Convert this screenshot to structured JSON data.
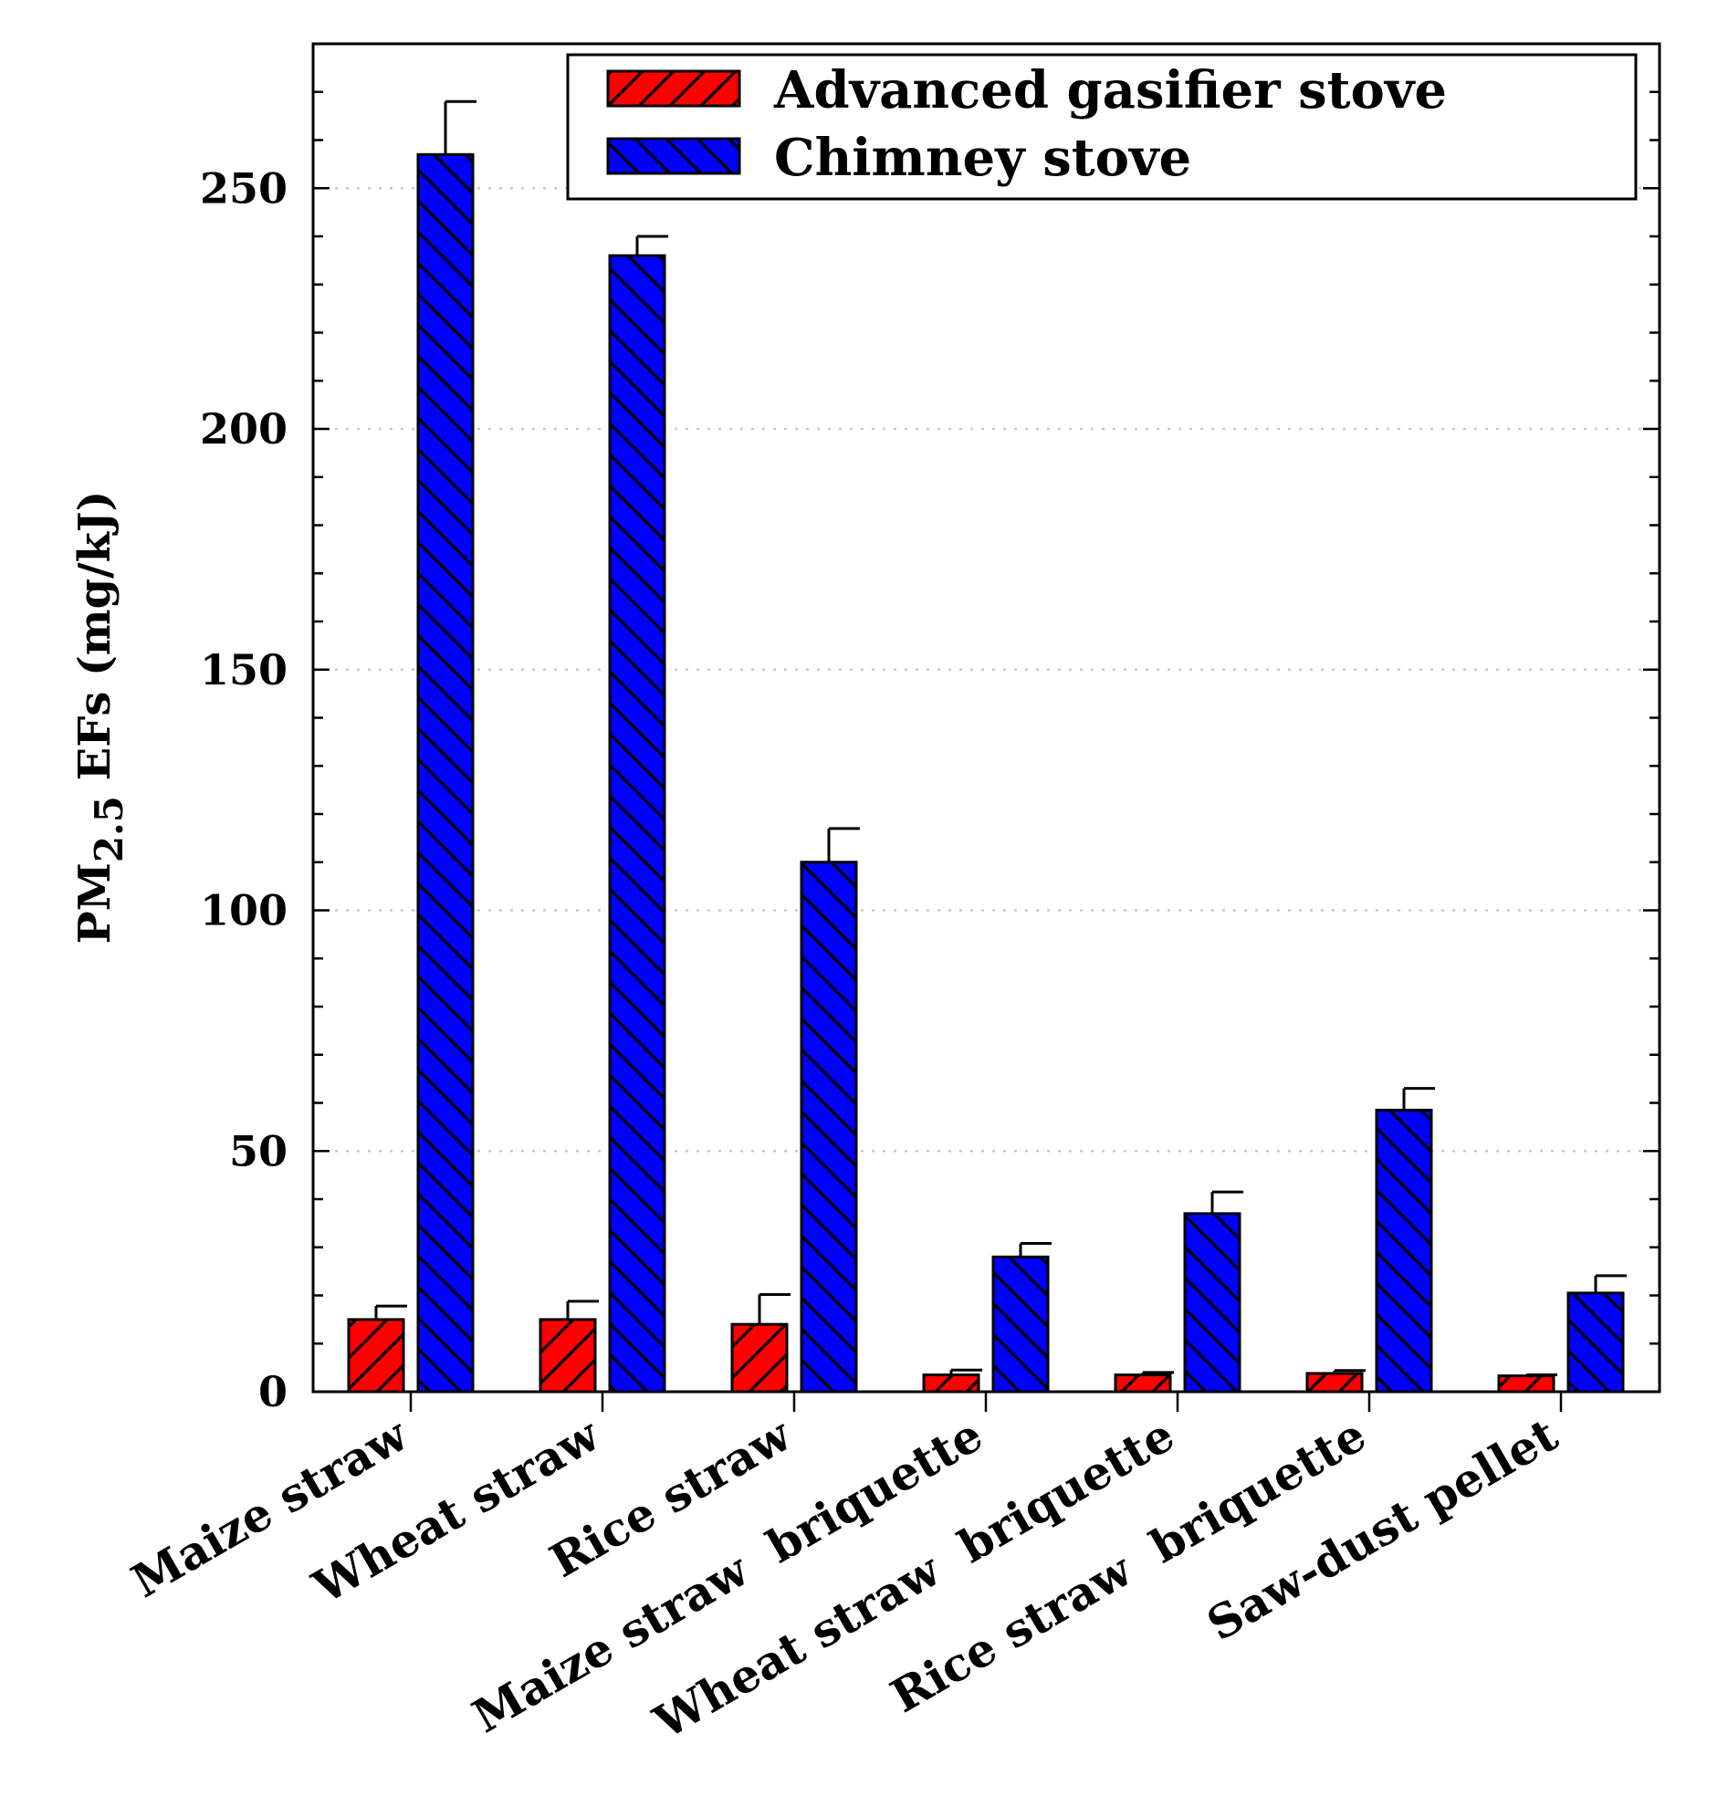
{
  "chart_data": {
    "type": "bar",
    "title": "",
    "xlabel": "",
    "ylabel": {
      "main": "PM",
      "subscript": "2.5",
      "rest": " EFs (mg/kJ)"
    },
    "ylim": [
      0,
      280
    ],
    "yticks": [
      0,
      50,
      100,
      150,
      200,
      250
    ],
    "grid": "horizontal dotted",
    "legend_position": "top-right",
    "categories": [
      "Maize straw",
      "Wheat straw",
      "Rice straw",
      "Maize straw  briquette",
      "Wheat straw  briquette",
      "Rice straw  briquette",
      "Saw-dust pellet"
    ],
    "series": [
      {
        "name": "Advanced gasifier stove",
        "color": "#ff0000",
        "hatch": "forward-diagonal",
        "values": [
          15,
          15,
          14,
          3.5,
          3.5,
          3.8,
          3.3
        ],
        "errors": [
          2.8,
          3.8,
          6.2,
          1.0,
          0.5,
          0.6,
          0.2
        ]
      },
      {
        "name": "Chimney stove",
        "color": "#0000ff",
        "hatch": "back-diagonal",
        "values": [
          257,
          236,
          110,
          28,
          37,
          58.5,
          20.5
        ],
        "errors": [
          11,
          4,
          7,
          2.8,
          4.5,
          4.5,
          3.6
        ]
      }
    ]
  }
}
